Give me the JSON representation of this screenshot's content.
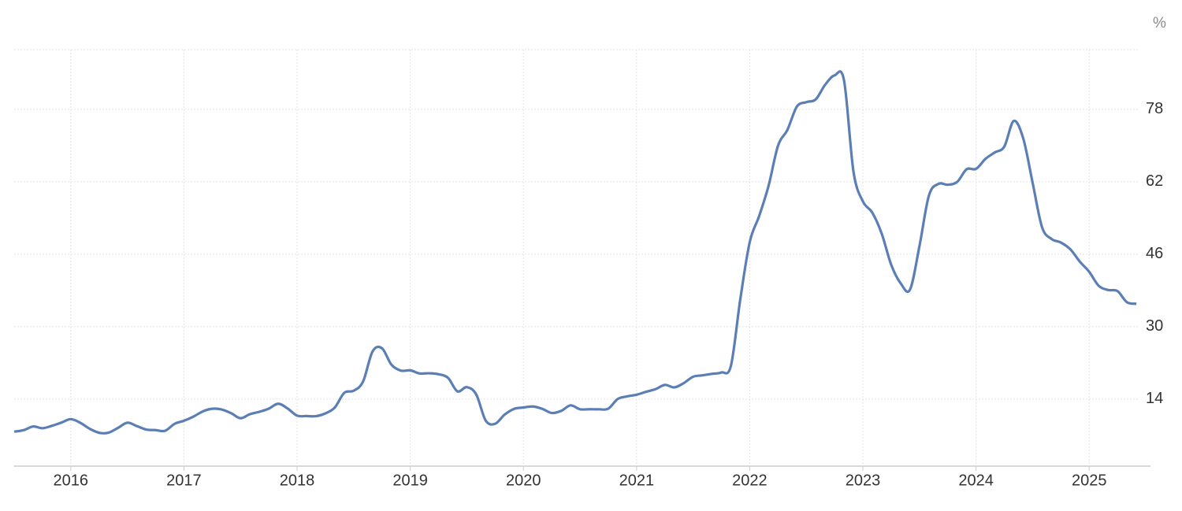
{
  "chart_data": {
    "type": "line",
    "unit_label": "%",
    "x": [
      2015.5,
      2015.5833,
      2015.6667,
      2015.75,
      2015.8333,
      2015.9167,
      2016,
      2016.0833,
      2016.1667,
      2016.25,
      2016.3333,
      2016.4167,
      2016.5,
      2016.5833,
      2016.6667,
      2016.75,
      2016.8333,
      2016.9167,
      2017,
      2017.0833,
      2017.1667,
      2017.25,
      2017.3333,
      2017.4167,
      2017.5,
      2017.5833,
      2017.6667,
      2017.75,
      2017.8333,
      2017.9167,
      2018,
      2018.0833,
      2018.1667,
      2018.25,
      2018.3333,
      2018.4167,
      2018.5,
      2018.5833,
      2018.6667,
      2018.75,
      2018.8333,
      2018.9167,
      2019,
      2019.0833,
      2019.1667,
      2019.25,
      2019.3333,
      2019.4167,
      2019.5,
      2019.5833,
      2019.6667,
      2019.75,
      2019.8333,
      2019.9167,
      2020,
      2020.0833,
      2020.1667,
      2020.25,
      2020.3333,
      2020.4167,
      2020.5,
      2020.5833,
      2020.6667,
      2020.75,
      2020.8333,
      2020.9167,
      2021,
      2021.0833,
      2021.1667,
      2021.25,
      2021.3333,
      2021.4167,
      2021.5,
      2021.5833,
      2021.6667,
      2021.75,
      2021.8333,
      2021.9167,
      2022,
      2022.0833,
      2022.1667,
      2022.25,
      2022.3333,
      2022.4167,
      2022.5,
      2022.5833,
      2022.6667,
      2022.75,
      2022.8333,
      2022.9167,
      2023,
      2023.0833,
      2023.1667,
      2023.25,
      2023.3333,
      2023.4167,
      2023.5,
      2023.5833,
      2023.6667,
      2023.75,
      2023.8333,
      2023.9167,
      2024,
      2024.0833,
      2024.1667,
      2024.25,
      2024.3333,
      2024.4167,
      2024.5,
      2024.5833,
      2024.6667,
      2024.75,
      2024.8333,
      2024.9167,
      2025,
      2025.0833,
      2025.1667,
      2025.25,
      2025.3333,
      2025.4167
    ],
    "series": [
      {
        "color": "#5b7fb5",
        "values": [
          6.81,
          7.14,
          7.95,
          7.58,
          8.1,
          8.81,
          9.58,
          8.78,
          7.46,
          6.57,
          6.58,
          7.64,
          8.79,
          8.05,
          7.28,
          7.16,
          7.0,
          8.53,
          9.22,
          10.13,
          11.29,
          11.87,
          11.72,
          10.9,
          9.79,
          10.68,
          11.2,
          11.9,
          12.98,
          11.92,
          10.35,
          10.26,
          10.23,
          10.85,
          12.15,
          15.39,
          15.85,
          17.9,
          24.52,
          25.24,
          21.62,
          20.3,
          20.35,
          19.67,
          19.71,
          19.5,
          18.71,
          15.72,
          16.65,
          15.01,
          9.26,
          8.55,
          10.56,
          11.84,
          12.15,
          12.37,
          11.86,
          10.94,
          11.39,
          12.62,
          11.76,
          11.77,
          11.75,
          11.89,
          14.03,
          14.6,
          14.97,
          15.61,
          16.19,
          17.14,
          16.59,
          17.53,
          18.95,
          19.25,
          19.58,
          19.89,
          21.31,
          36.08,
          48.69,
          54.44,
          61.14,
          69.97,
          73.5,
          78.62,
          79.6,
          80.21,
          83.45,
          85.51,
          84.39,
          64.27,
          57.68,
          55.18,
          50.51,
          43.68,
          39.59,
          38.21,
          47.83,
          58.94,
          61.53,
          61.36,
          61.98,
          64.77,
          64.86,
          67.07,
          68.5,
          69.8,
          75.45,
          71.6,
          61.78,
          51.97,
          49.38,
          48.58,
          47.09,
          44.38,
          42.12,
          39.05,
          38.1,
          37.86,
          35.41,
          35.05
        ]
      }
    ],
    "xlim": [
      2015.5,
      2025.43
    ],
    "xticks": [
      2016,
      2017,
      2018,
      2019,
      2020,
      2021,
      2022,
      2023,
      2024,
      2025
    ],
    "ylim": [
      -0.8,
      91.2
    ],
    "yticks": [
      14,
      30,
      46,
      62,
      78
    ],
    "grid": true
  }
}
